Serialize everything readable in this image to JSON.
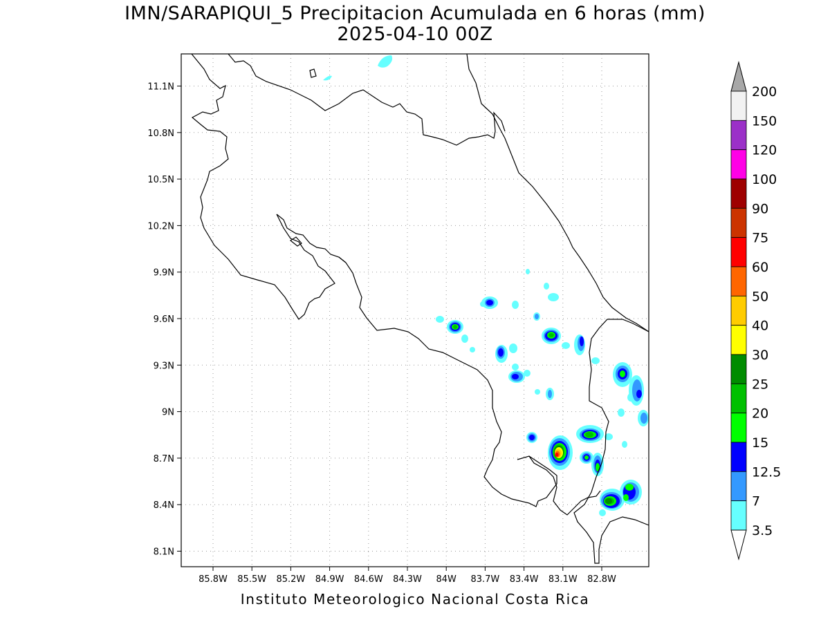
{
  "title_line1": "IMN/SARAPIQUI_5 Precipitacion Acumulada en 6 horas (mm)",
  "title_line2": "2025-04-10 00Z",
  "footer": "Instituto Meteorologico Nacional Costa Rica",
  "map": {
    "x_ticks": [
      "85.8W",
      "85.5W",
      "85.2W",
      "84.9W",
      "84.6W",
      "84.3W",
      "84W",
      "83.7W",
      "83.4W",
      "83.1W",
      "82.8W"
    ],
    "y_ticks": [
      "11.1N",
      "10.8N",
      "10.5N",
      "10.2N",
      "9.9N",
      "9.6N",
      "9.3N",
      "9N",
      "8.7N",
      "8.4N",
      "8.1N"
    ],
    "gridlines": true
  },
  "colorbar": {
    "labels": [
      "200",
      "150",
      "120",
      "100",
      "90",
      "75",
      "60",
      "50",
      "40",
      "30",
      "25",
      "20",
      "15",
      "12.5",
      "7",
      "3.5"
    ],
    "colors": [
      "#f2f2f2",
      "#9b30c8",
      "#ff00e6",
      "#9e0000",
      "#cc3300",
      "#ff0000",
      "#ff6600",
      "#ffcc00",
      "#ffff00",
      "#008c00",
      "#00c000",
      "#00ff00",
      "#0000ff",
      "#3399ff",
      "#66ffff"
    ],
    "top_arrow_color": "#a8a8a8",
    "bottom_arrow_color": "#ffffff"
  }
}
